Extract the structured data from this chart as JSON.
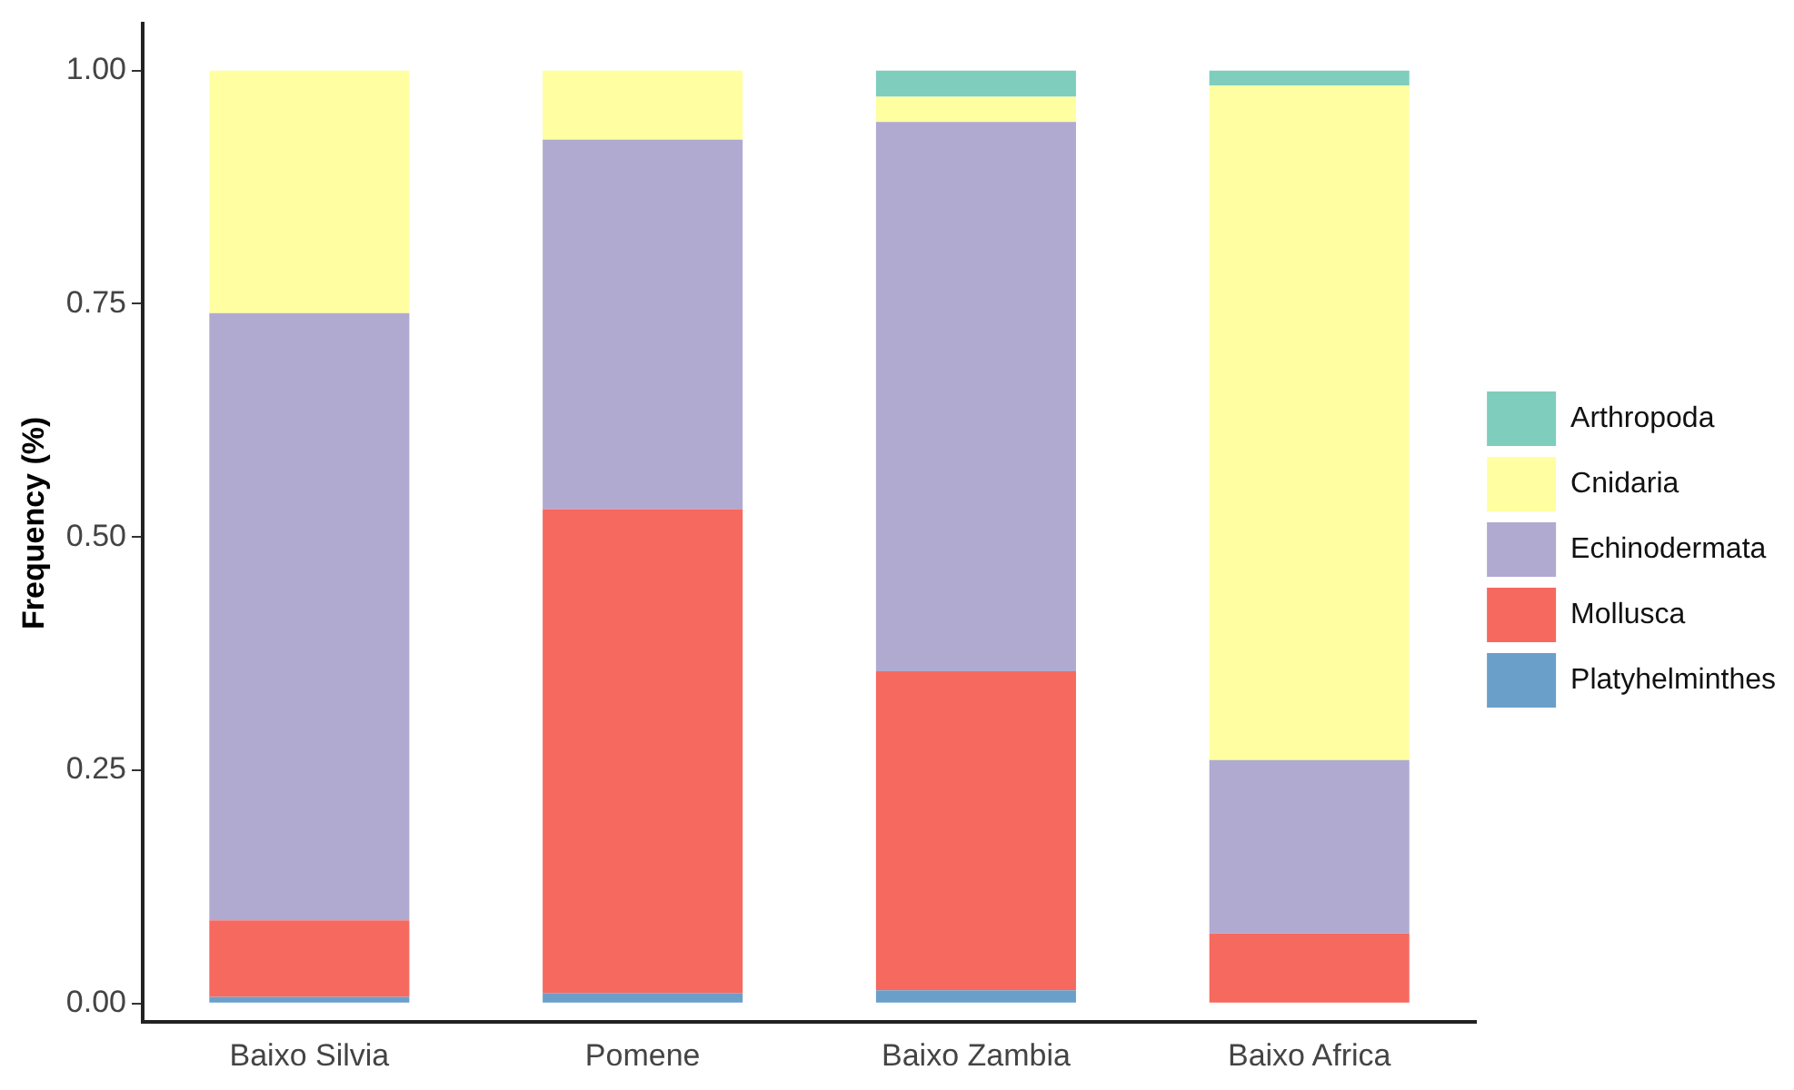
{
  "chart_data": {
    "type": "bar",
    "stacked": true,
    "ylabel": "Frequency (%)",
    "categories": [
      "Baixo Silvia",
      "Pomene",
      "Baixo Zambia",
      "Baixo Africa"
    ],
    "series": [
      {
        "name": "Platyhelminthes",
        "color": "#6a9fca",
        "values": [
          0.007,
          0.011,
          0.014,
          0
        ]
      },
      {
        "name": "Mollusca",
        "color": "#f6695f",
        "values": [
          0.082,
          0.519,
          0.342,
          0.075
        ]
      },
      {
        "name": "Echinodermata",
        "color": "#b0aad0",
        "values": [
          0.651,
          0.396,
          0.589,
          0.186
        ]
      },
      {
        "name": "Cnidaria",
        "color": "#ffffa2",
        "values": [
          0.26,
          0.074,
          0.027,
          0.723
        ]
      },
      {
        "name": "Arthropoda",
        "color": "#7fcdbc",
        "values": [
          0,
          0,
          0.028,
          0.016
        ]
      }
    ],
    "ylim": [
      -0.02,
      1.05
    ],
    "yticks": [
      {
        "value": 0,
        "label": "0.00"
      },
      {
        "value": 0.25,
        "label": "0.25"
      },
      {
        "value": 0.5,
        "label": "0.50"
      },
      {
        "value": 0.75,
        "label": "0.75"
      },
      {
        "value": 1,
        "label": "1.00"
      }
    ],
    "grid": false,
    "legend": "right"
  }
}
